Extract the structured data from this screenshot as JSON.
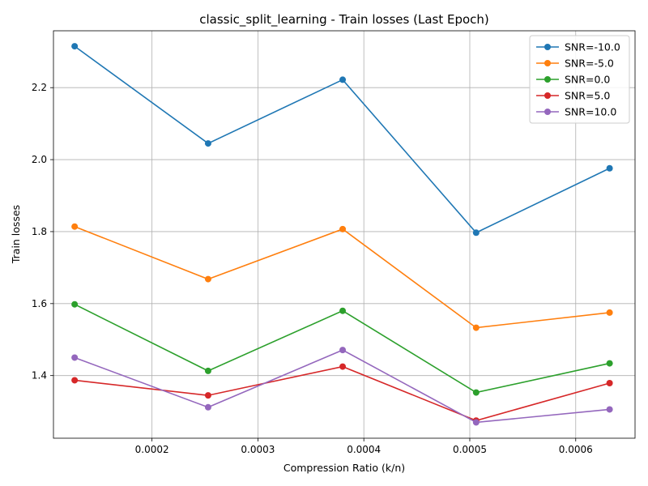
{
  "chart_data": {
    "type": "line",
    "title": "classic_split_learning - Train losses (Last Epoch)",
    "xlabel": "Compression Ratio (k/n)",
    "ylabel": "Train losses",
    "x": [
      0.000127,
      0.000253,
      0.00038,
      0.000506,
      0.000632
    ],
    "xlim": [
      0.000107,
      0.000656
    ],
    "ylim": [
      1.226,
      2.358
    ],
    "x_ticks": [
      0.0002,
      0.0003,
      0.0004,
      0.0005,
      0.0006
    ],
    "x_tick_labels": [
      "0.0002",
      "0.0003",
      "0.0004",
      "0.0005",
      "0.0006"
    ],
    "y_ticks": [
      1.4,
      1.6,
      1.8,
      2.0,
      2.2
    ],
    "y_tick_labels": [
      "1.4",
      "1.6",
      "1.8",
      "2.0",
      "2.2"
    ],
    "grid": true,
    "legend_position": "top-right",
    "series": [
      {
        "name": "SNR=-10.0",
        "color": "#1f77b4",
        "values": [
          2.315,
          2.045,
          2.222,
          1.797,
          1.976
        ]
      },
      {
        "name": "SNR=-5.0",
        "color": "#ff7f0e",
        "values": [
          1.814,
          1.668,
          1.807,
          1.533,
          1.575
        ]
      },
      {
        "name": "SNR=0.0",
        "color": "#2ca02c",
        "values": [
          1.598,
          1.413,
          1.58,
          1.353,
          1.434
        ]
      },
      {
        "name": "SNR=5.0",
        "color": "#d62728",
        "values": [
          1.387,
          1.345,
          1.425,
          1.275,
          1.379
        ]
      },
      {
        "name": "SNR=10.0",
        "color": "#9467bd",
        "values": [
          1.45,
          1.312,
          1.471,
          1.27,
          1.306
        ]
      }
    ]
  }
}
